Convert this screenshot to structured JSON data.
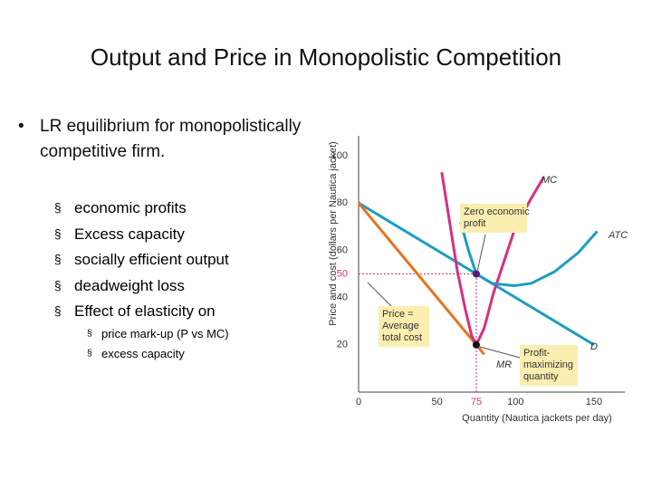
{
  "title": "Output and Price in Monopolistic Competition",
  "bullets": {
    "main": "LR equilibrium for monopolistically competitive firm.",
    "items": [
      "economic profits",
      "Excess capacity",
      "socially efficient output",
      "deadweight loss",
      "Effect of elasticity on"
    ],
    "subitems": [
      "price mark-up (P vs MC)",
      "excess capacity"
    ]
  },
  "chart_data": {
    "type": "line",
    "xlabel": "Quantity (Nautica jackets per day)",
    "ylabel": "Price and cost (dollars per Nautica jacket)",
    "xlim": [
      0,
      165
    ],
    "ylim": [
      0,
      108
    ],
    "xticks": [
      0,
      50,
      75,
      100,
      150
    ],
    "yticks": [
      20,
      40,
      50,
      60,
      80,
      100
    ],
    "guide_color": "#d6307f",
    "series": [
      {
        "name": "D",
        "color": "#1e9cc2",
        "x": [
          0,
          75,
          150
        ],
        "values": [
          80,
          50,
          20
        ]
      },
      {
        "name": "MR",
        "color": "#e8731e",
        "x": [
          0,
          75,
          80
        ],
        "values": [
          80,
          20,
          16
        ]
      },
      {
        "name": "MC",
        "color": "#d6307f",
        "x": [
          53,
          58,
          63,
          68,
          72,
          75,
          80,
          86,
          93,
          100,
          110,
          118
        ],
        "values": [
          93,
          72,
          51,
          35,
          24,
          20,
          27,
          42,
          56,
          70,
          82,
          91
        ]
      },
      {
        "name": "ATC",
        "color": "#1e9cc2",
        "x": [
          65,
          70,
          75,
          85,
          99,
          110,
          125,
          140,
          152
        ],
        "values": [
          72,
          60,
          50,
          46,
          45,
          46,
          51,
          59,
          68
        ]
      }
    ],
    "annotations": [
      [
        "Zero economic",
        "profit"
      ],
      [
        "Price =",
        "Average",
        "total cost"
      ],
      [
        "Profit-",
        "maximizing",
        "quantity"
      ]
    ]
  }
}
